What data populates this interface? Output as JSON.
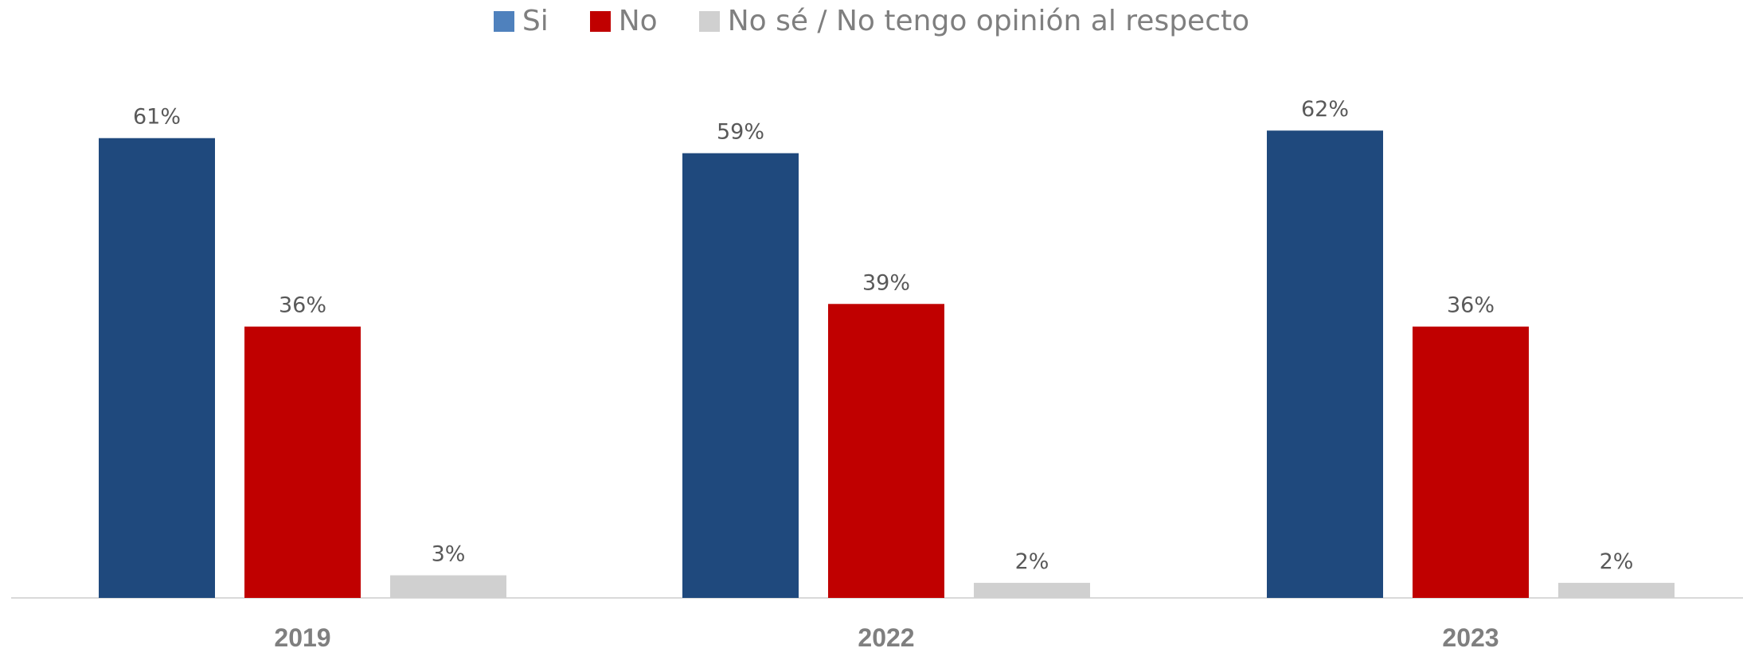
{
  "legend": {
    "items": [
      {
        "label": "Si",
        "color": "#4f81bd"
      },
      {
        "label": "No",
        "color": "#c00000"
      },
      {
        "label": "No sé / No tengo opinión al respecto",
        "color": "#d0d0d0"
      }
    ]
  },
  "chart_data": {
    "type": "bar",
    "categories": [
      "2019",
      "2022",
      "2023"
    ],
    "series": [
      {
        "name": "Si",
        "values": [
          61,
          59,
          62
        ],
        "color": "#1f497d"
      },
      {
        "name": "No",
        "values": [
          36,
          39,
          36
        ],
        "color": "#c00000"
      },
      {
        "name": "No sé / No tengo opinión al respecto",
        "values": [
          3,
          2,
          2
        ],
        "color": "#d0d0d0"
      }
    ],
    "value_labels": [
      [
        "61%",
        "59%",
        "62%"
      ],
      [
        "36%",
        "39%",
        "36%"
      ],
      [
        "3%",
        "2%",
        "2%"
      ]
    ],
    "ylim": [
      0,
      100
    ],
    "grid": false,
    "legend_position": "top-center",
    "axis_color": "#d9d9d9"
  }
}
